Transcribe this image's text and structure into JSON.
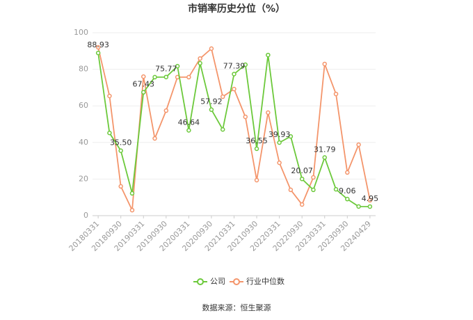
{
  "chart_data": {
    "type": "line",
    "title": "市销率历史分位（%）",
    "categories": [
      "20180331",
      null,
      "20180930",
      null,
      "20190331",
      null,
      "20190930",
      null,
      "20200331",
      null,
      "20200930",
      null,
      "20210331",
      null,
      "20210930",
      null,
      "20220331",
      null,
      "20220930",
      null,
      "20230331",
      null,
      "20230930",
      null,
      "20240429"
    ],
    "series": [
      {
        "name": "公司",
        "color": "#6cc93b",
        "values": [
          88.93,
          45.2,
          35.5,
          12.2,
          67.43,
          75.7,
          75.77,
          81.7,
          46.64,
          83.3,
          57.92,
          47.1,
          77.39,
          82.5,
          36.55,
          87.8,
          39.93,
          43.3,
          20.07,
          14.1,
          31.79,
          14.4,
          9.06,
          5.0,
          4.95
        ],
        "value_labels": [
          "88.93",
          null,
          "35.50",
          null,
          "67.43",
          null,
          "75.77",
          null,
          "46.64",
          null,
          "57.92",
          null,
          "77.39",
          null,
          "36.55",
          null,
          "39.93",
          null,
          "20.07",
          null,
          "31.79",
          null,
          "9.06",
          null,
          "4.95"
        ]
      },
      {
        "name": "行业中位数",
        "color": "#f4956b",
        "values": [
          92.0,
          65.4,
          16.0,
          3.0,
          76.0,
          42.2,
          57.4,
          75.7,
          75.7,
          85.9,
          91.3,
          65.0,
          69.2,
          54.0,
          19.4,
          56.3,
          28.9,
          14.1,
          6.1,
          20.9,
          82.9,
          66.5,
          23.6,
          38.8,
          8.4
        ]
      }
    ],
    "ylim": [
      0,
      100
    ],
    "yticks": [
      0,
      20,
      40,
      60,
      80,
      100
    ],
    "grid": true,
    "source": "数据来源：恒生聚源"
  }
}
